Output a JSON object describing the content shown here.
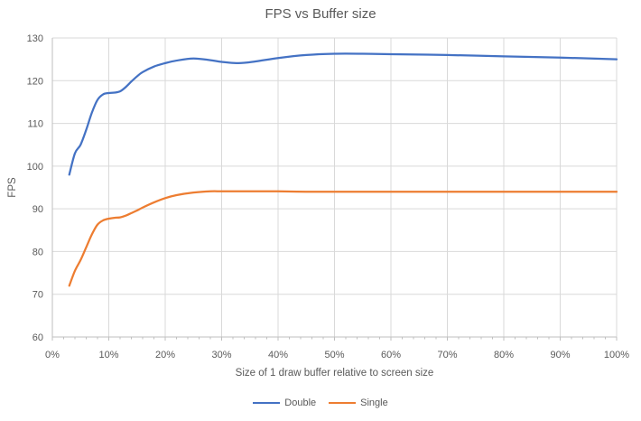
{
  "colors": {
    "background": "#FFFFFF",
    "grid": "#D9D9D9",
    "axis": "#BFBFBF",
    "text": "#595959",
    "double_series": "#4472C4",
    "single_series": "#ED7D31"
  },
  "chart_data": {
    "type": "line",
    "title": "FPS vs Buffer size",
    "xlabel": "Size of 1 draw buffer relative to screen size",
    "ylabel": "FPS",
    "xlim": [
      0,
      100
    ],
    "ylim": [
      60,
      130
    ],
    "x_tick_values": [
      0,
      10,
      20,
      30,
      40,
      50,
      60,
      70,
      80,
      90,
      100
    ],
    "x_tick_labels": [
      "0%",
      "10%",
      "20%",
      "30%",
      "40%",
      "50%",
      "60%",
      "70%",
      "80%",
      "90%",
      "100%"
    ],
    "x_minor_tick_step": 2,
    "y_tick_values": [
      60,
      70,
      80,
      90,
      100,
      110,
      120,
      130
    ],
    "grid": true,
    "smooth_lines": true,
    "legend_position": "bottom",
    "series": [
      {
        "name": "Double",
        "color": "#4472C4",
        "x": [
          3,
          4,
          5,
          6,
          7,
          8,
          9,
          10,
          11,
          12,
          13,
          14,
          15,
          16,
          18,
          20,
          22,
          25,
          28,
          30,
          33,
          36,
          40,
          45,
          50,
          55,
          60,
          70,
          80,
          90,
          100
        ],
        "y": [
          98,
          103,
          105,
          108.5,
          112.5,
          115.5,
          116.8,
          117.1,
          117.2,
          117.5,
          118.5,
          119.8,
          121,
          122,
          123.3,
          124.1,
          124.7,
          125.2,
          124.8,
          124.4,
          124.1,
          124.5,
          125.3,
          126,
          126.3,
          126.3,
          126.2,
          126,
          125.7,
          125.4,
          125
        ]
      },
      {
        "name": "Single",
        "color": "#ED7D31",
        "x": [
          3,
          4,
          5,
          6,
          7,
          8,
          9,
          10,
          11,
          12,
          13,
          14,
          15,
          16,
          18,
          20,
          22,
          25,
          28,
          30,
          33,
          36,
          40,
          45,
          50,
          55,
          60,
          70,
          80,
          90,
          100
        ],
        "y": [
          72,
          75.5,
          78,
          81,
          84,
          86.3,
          87.3,
          87.7,
          87.9,
          88,
          88.4,
          89,
          89.6,
          90.3,
          91.5,
          92.5,
          93.2,
          93.8,
          94.1,
          94.1,
          94.1,
          94.1,
          94.1,
          94,
          94,
          94,
          94,
          94,
          94,
          94,
          94
        ]
      }
    ]
  }
}
